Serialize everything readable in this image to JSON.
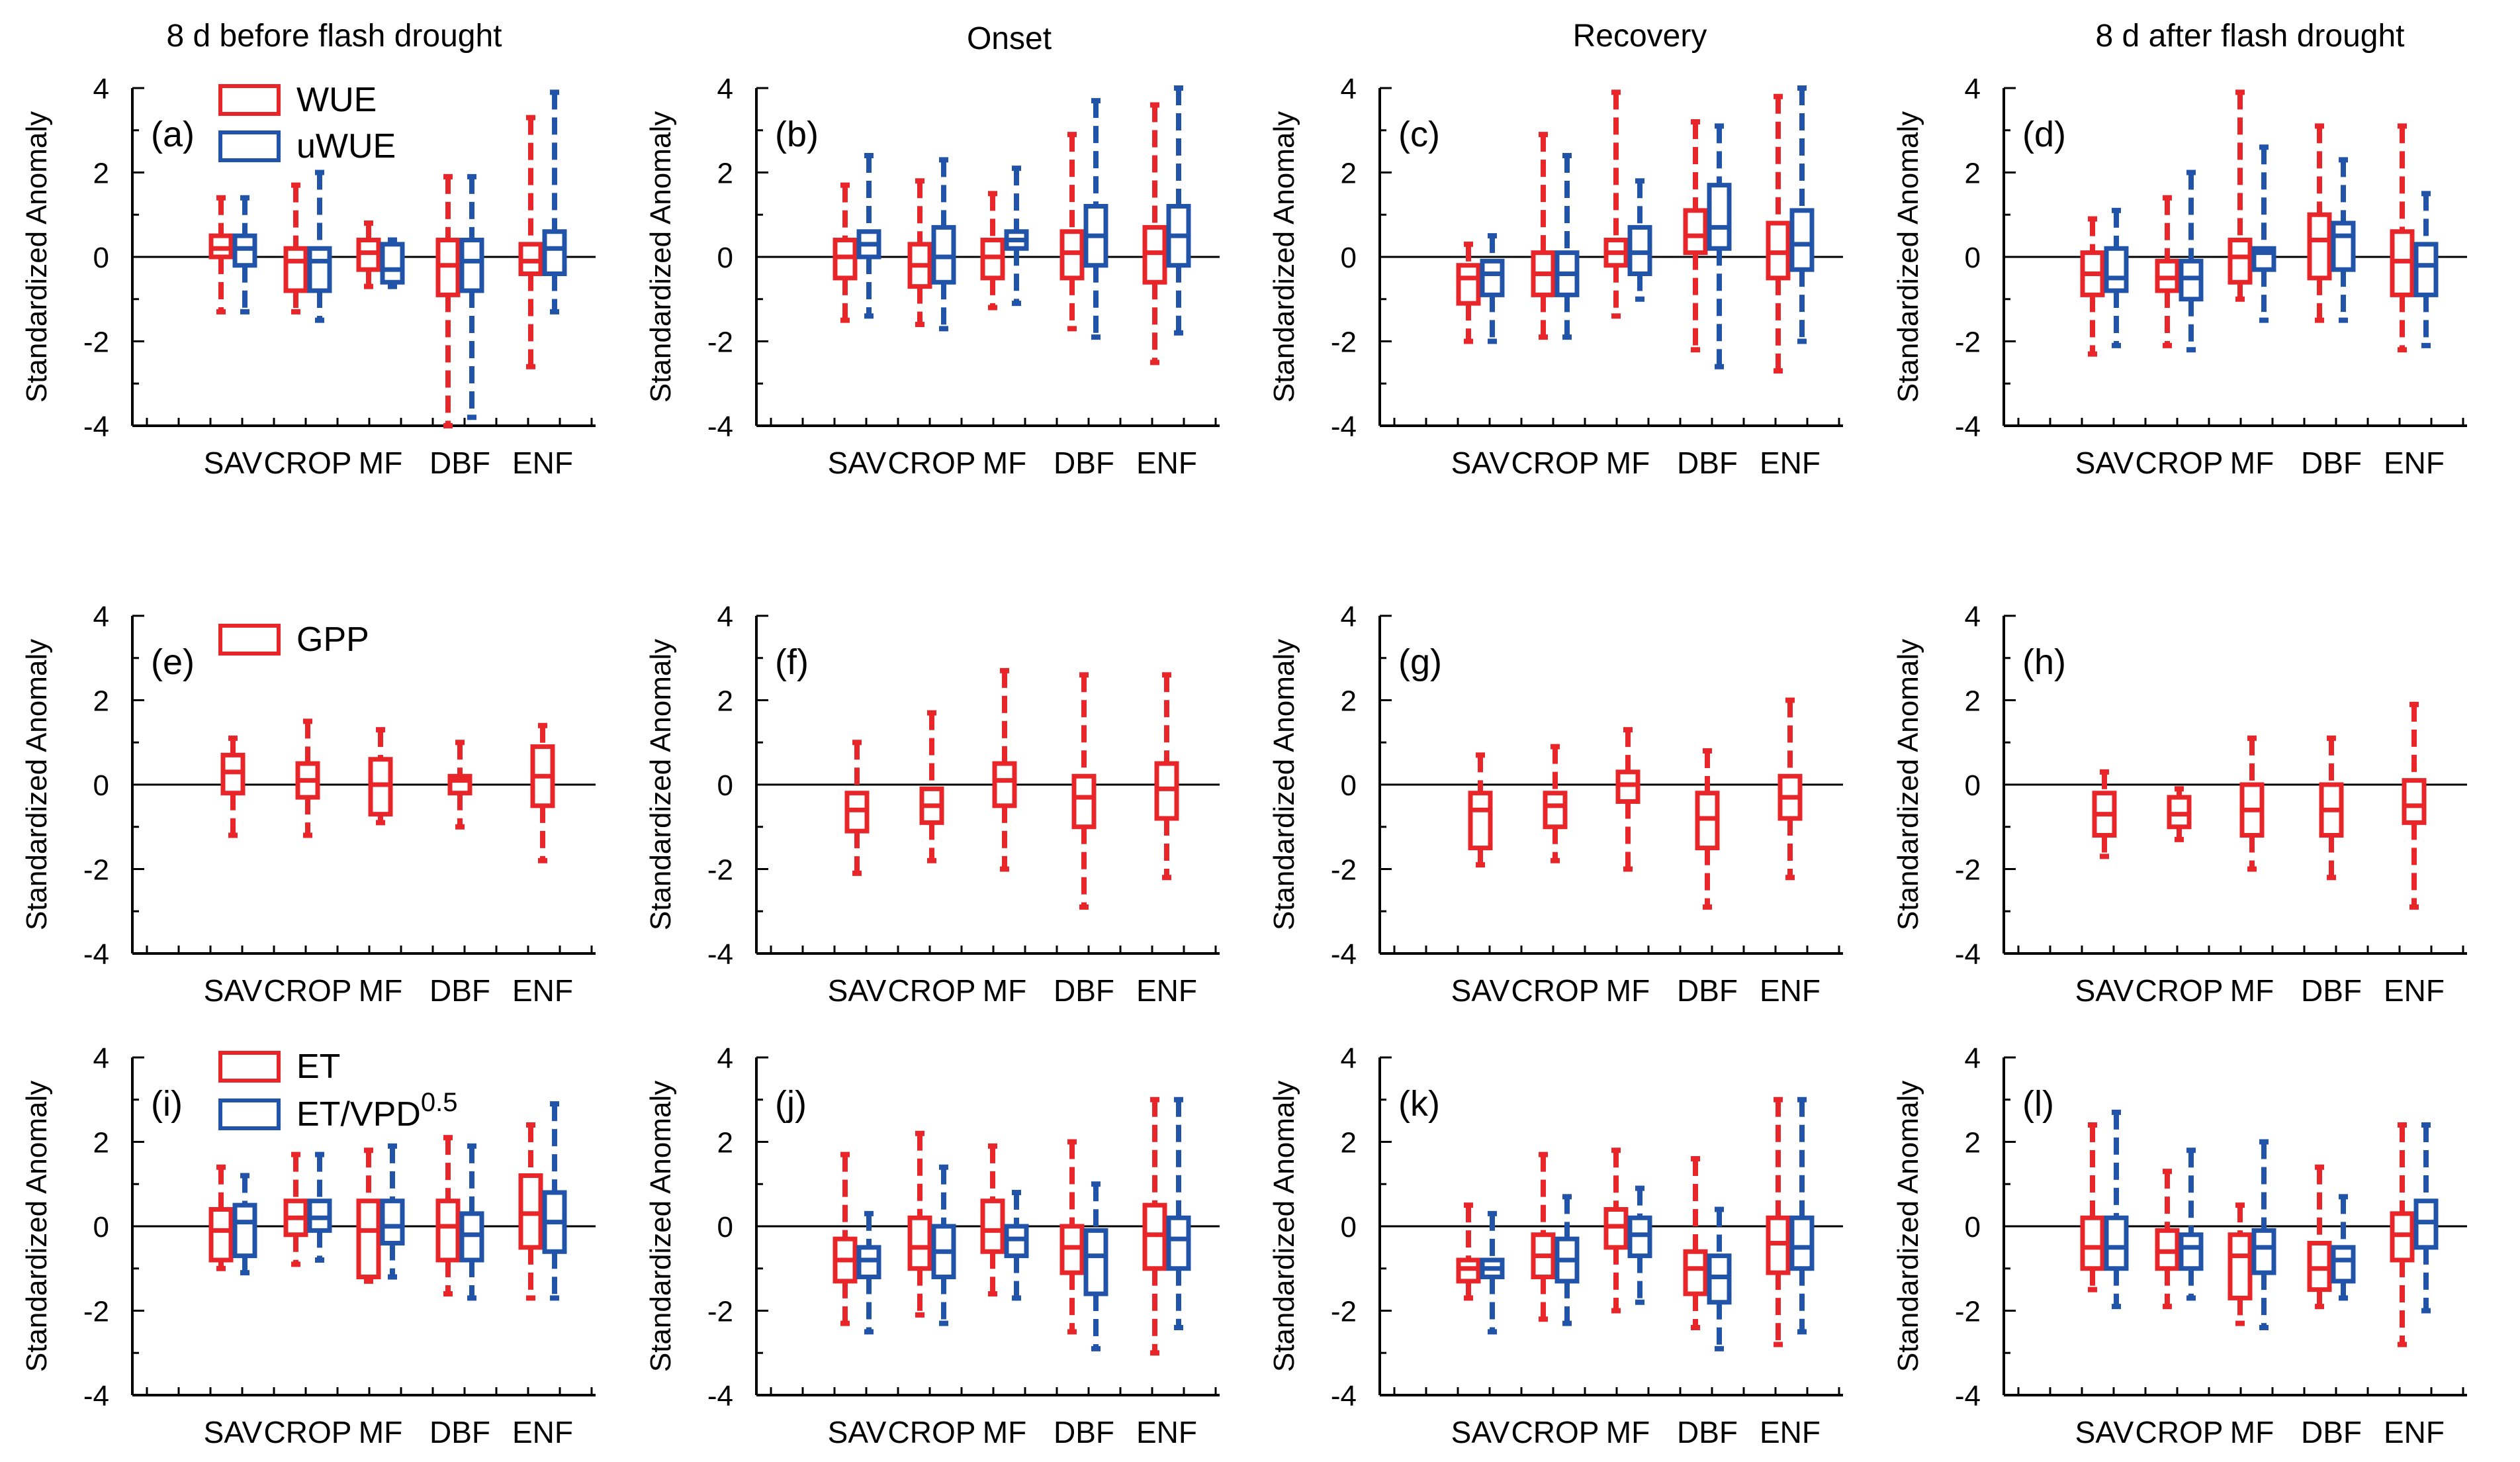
{
  "figure": {
    "column_titles": [
      "8 d before flash drought",
      "Onset",
      "Recovery",
      "8 d after flash drought"
    ]
  },
  "colors": {
    "red": "#e8262a",
    "blue": "#2154a8",
    "axis": "#000000"
  },
  "legends": [
    {
      "row": 0,
      "items": [
        {
          "label": "WUE",
          "color": "#e8262a"
        },
        {
          "label": "uWUE",
          "color": "#2154a8"
        }
      ]
    },
    {
      "row": 1,
      "items": [
        {
          "label": "GPP",
          "color": "#e8262a"
        }
      ]
    },
    {
      "row": 2,
      "items": [
        {
          "label": "ET",
          "color": "#e8262a"
        },
        {
          "label": "ET/VPD",
          "sup": "0.5",
          "color": "#2154a8"
        }
      ]
    }
  ],
  "chart_data": [
    {
      "panel": "(a)",
      "type": "boxplot",
      "row": 0,
      "col": 0,
      "ylabel": "Standardized Anomaly",
      "ylim": [
        -4,
        4
      ],
      "yticks": [
        "4",
        "2",
        "0",
        "-2",
        "-4"
      ],
      "categories": [
        "SAV",
        "CROP",
        "MF",
        "DBF",
        "ENF"
      ],
      "series": [
        {
          "name": "WUE",
          "boxes": [
            [
              -1.3,
              0.0,
              0.2,
              0.5,
              1.4
            ],
            [
              -1.3,
              -0.8,
              -0.1,
              0.2,
              1.7
            ],
            [
              -0.7,
              -0.3,
              0.1,
              0.4,
              0.8
            ],
            [
              -4.0,
              -0.9,
              -0.2,
              0.4,
              1.9
            ],
            [
              -2.6,
              -0.4,
              -0.1,
              0.3,
              3.3
            ]
          ]
        },
        {
          "name": "uWUE",
          "boxes": [
            [
              -1.3,
              -0.2,
              0.2,
              0.5,
              1.4
            ],
            [
              -1.5,
              -0.8,
              -0.1,
              0.2,
              2.0
            ],
            [
              -0.7,
              -0.6,
              -0.3,
              0.3,
              0.4
            ],
            [
              -3.8,
              -0.8,
              -0.1,
              0.4,
              1.9
            ],
            [
              -1.3,
              -0.4,
              0.2,
              0.6,
              3.9
            ]
          ]
        }
      ]
    },
    {
      "panel": "(b)",
      "type": "boxplot",
      "row": 0,
      "col": 1,
      "ylabel": "Standardized Anomaly",
      "ylim": [
        -4,
        4
      ],
      "yticks": [
        "4",
        "2",
        "0",
        "-2",
        "-4"
      ],
      "categories": [
        "SAV",
        "CROP",
        "MF",
        "DBF",
        "ENF"
      ],
      "series": [
        {
          "name": "WUE",
          "boxes": [
            [
              -1.5,
              -0.5,
              0.0,
              0.4,
              1.7
            ],
            [
              -1.6,
              -0.7,
              -0.2,
              0.3,
              1.8
            ],
            [
              -1.2,
              -0.5,
              0.0,
              0.4,
              1.5
            ],
            [
              -1.7,
              -0.5,
              0.1,
              0.6,
              2.9
            ],
            [
              -2.5,
              -0.6,
              0.1,
              0.7,
              3.6
            ]
          ]
        },
        {
          "name": "uWUE",
          "boxes": [
            [
              -1.4,
              0.0,
              0.3,
              0.6,
              2.4
            ],
            [
              -1.7,
              -0.6,
              0.0,
              0.7,
              2.3
            ],
            [
              -1.1,
              0.2,
              0.4,
              0.6,
              2.1
            ],
            [
              -1.9,
              -0.2,
              0.5,
              1.2,
              3.7
            ],
            [
              -1.8,
              -0.2,
              0.5,
              1.2,
              4.0
            ]
          ]
        }
      ]
    },
    {
      "panel": "(c)",
      "type": "boxplot",
      "row": 0,
      "col": 2,
      "ylabel": "Standardized Anomaly",
      "ylim": [
        -4,
        4
      ],
      "yticks": [
        "4",
        "2",
        "0",
        "-2",
        "-4"
      ],
      "categories": [
        "SAV",
        "CROP",
        "MF",
        "DBF",
        "ENF"
      ],
      "series": [
        {
          "name": "WUE",
          "boxes": [
            [
              -2.0,
              -1.1,
              -0.5,
              -0.2,
              0.3
            ],
            [
              -1.9,
              -0.9,
              -0.4,
              0.1,
              2.9
            ],
            [
              -1.4,
              -0.2,
              0.1,
              0.4,
              3.9
            ],
            [
              -2.2,
              0.1,
              0.5,
              1.1,
              3.2
            ],
            [
              -2.7,
              -0.5,
              0.1,
              0.8,
              3.8
            ]
          ]
        },
        {
          "name": "uWUE",
          "boxes": [
            [
              -2.0,
              -0.9,
              -0.4,
              -0.1,
              0.5
            ],
            [
              -1.9,
              -0.9,
              -0.4,
              0.1,
              2.4
            ],
            [
              -1.0,
              -0.4,
              0.1,
              0.7,
              1.8
            ],
            [
              -2.6,
              0.2,
              0.7,
              1.7,
              3.1
            ],
            [
              -2.0,
              -0.3,
              0.3,
              1.1,
              4.0
            ]
          ]
        }
      ]
    },
    {
      "panel": "(d)",
      "type": "boxplot",
      "row": 0,
      "col": 3,
      "ylabel": "Standardized Anomaly",
      "ylim": [
        -4,
        4
      ],
      "yticks": [
        "4",
        "2",
        "0",
        "-2",
        "-4"
      ],
      "categories": [
        "SAV",
        "CROP",
        "MF",
        "DBF",
        "ENF"
      ],
      "series": [
        {
          "name": "WUE",
          "boxes": [
            [
              -2.3,
              -0.9,
              -0.4,
              0.1,
              0.9
            ],
            [
              -2.1,
              -0.8,
              -0.5,
              -0.1,
              1.4
            ],
            [
              -1.0,
              -0.6,
              0.0,
              0.4,
              3.9
            ],
            [
              -1.5,
              -0.5,
              0.4,
              1.0,
              3.1
            ],
            [
              -2.2,
              -0.9,
              -0.1,
              0.6,
              3.1
            ]
          ]
        },
        {
          "name": "uWUE",
          "boxes": [
            [
              -2.1,
              -0.8,
              -0.5,
              0.2,
              1.1
            ],
            [
              -2.2,
              -1.0,
              -0.5,
              -0.1,
              2.0
            ],
            [
              -1.5,
              -0.3,
              0.1,
              0.2,
              2.6
            ],
            [
              -1.5,
              -0.3,
              0.5,
              0.8,
              2.3
            ],
            [
              -2.1,
              -0.9,
              -0.2,
              0.3,
              1.5
            ]
          ]
        }
      ]
    },
    {
      "panel": "(e)",
      "type": "boxplot",
      "row": 1,
      "col": 0,
      "ylabel": "Standardized Anomaly",
      "ylim": [
        -4,
        4
      ],
      "yticks": [
        "4",
        "2",
        "0",
        "-2",
        "-4"
      ],
      "categories": [
        "SAV",
        "CROP",
        "MF",
        "DBF",
        "ENF"
      ],
      "series": [
        {
          "name": "GPP",
          "boxes": [
            [
              -1.2,
              -0.2,
              0.3,
              0.7,
              1.1
            ],
            [
              -1.2,
              -0.3,
              0.1,
              0.5,
              1.5
            ],
            [
              -0.9,
              -0.7,
              0.0,
              0.6,
              1.3
            ],
            [
              -1.0,
              -0.2,
              0.1,
              0.2,
              1.0
            ],
            [
              -1.8,
              -0.5,
              0.2,
              0.9,
              1.4
            ]
          ]
        }
      ]
    },
    {
      "panel": "(f)",
      "type": "boxplot",
      "row": 1,
      "col": 1,
      "ylabel": "Standardized Anomaly",
      "ylim": [
        -4,
        4
      ],
      "yticks": [
        "4",
        "2",
        "0",
        "-2",
        "-4"
      ],
      "categories": [
        "SAV",
        "CROP",
        "MF",
        "DBF",
        "ENF"
      ],
      "series": [
        {
          "name": "GPP",
          "boxes": [
            [
              -2.1,
              -1.1,
              -0.6,
              -0.2,
              1.0
            ],
            [
              -1.8,
              -0.9,
              -0.5,
              -0.1,
              1.7
            ],
            [
              -2.0,
              -0.5,
              0.1,
              0.5,
              2.7
            ],
            [
              -2.9,
              -1.0,
              -0.3,
              0.2,
              2.6
            ],
            [
              -2.2,
              -0.8,
              -0.1,
              0.5,
              2.6
            ]
          ]
        }
      ]
    },
    {
      "panel": "(g)",
      "type": "boxplot",
      "row": 1,
      "col": 2,
      "ylabel": "Standardized Anomaly",
      "ylim": [
        -4,
        4
      ],
      "yticks": [
        "4",
        "2",
        "0",
        "-2",
        "-4"
      ],
      "categories": [
        "SAV",
        "CROP",
        "MF",
        "DBF",
        "ENF"
      ],
      "series": [
        {
          "name": "GPP",
          "boxes": [
            [
              -1.9,
              -1.5,
              -0.6,
              -0.2,
              0.7
            ],
            [
              -1.8,
              -1.0,
              -0.5,
              -0.2,
              0.9
            ],
            [
              -2.0,
              -0.4,
              0.0,
              0.3,
              1.3
            ],
            [
              -2.9,
              -1.5,
              -0.8,
              -0.2,
              0.8
            ],
            [
              -2.2,
              -0.8,
              -0.3,
              0.2,
              2.0
            ]
          ]
        }
      ]
    },
    {
      "panel": "(h)",
      "type": "boxplot",
      "row": 1,
      "col": 3,
      "ylabel": "Standardized Anomaly",
      "ylim": [
        -4,
        4
      ],
      "yticks": [
        "4",
        "2",
        "0",
        "-2",
        "-4"
      ],
      "categories": [
        "SAV",
        "CROP",
        "MF",
        "DBF",
        "ENF"
      ],
      "series": [
        {
          "name": "GPP",
          "boxes": [
            [
              -1.7,
              -1.2,
              -0.7,
              -0.2,
              0.3
            ],
            [
              -1.3,
              -1.0,
              -0.7,
              -0.3,
              -0.1
            ],
            [
              -2.0,
              -1.2,
              -0.6,
              0.0,
              1.1
            ],
            [
              -2.2,
              -1.2,
              -0.6,
              0.0,
              1.1
            ],
            [
              -2.9,
              -0.9,
              -0.5,
              0.1,
              1.9
            ]
          ]
        }
      ]
    },
    {
      "panel": "(i)",
      "type": "boxplot",
      "row": 2,
      "col": 0,
      "ylabel": "Standardized Anomaly",
      "ylim": [
        -4,
        4
      ],
      "yticks": [
        "4",
        "2",
        "0",
        "-2",
        "-4"
      ],
      "categories": [
        "SAV",
        "CROP",
        "MF",
        "DBF",
        "ENF"
      ],
      "series": [
        {
          "name": "ET",
          "boxes": [
            [
              -1.0,
              -0.8,
              -0.1,
              0.4,
              1.4
            ],
            [
              -0.9,
              -0.2,
              0.2,
              0.6,
              1.7
            ],
            [
              -1.3,
              -1.2,
              -0.1,
              0.6,
              1.8
            ],
            [
              -1.6,
              -0.8,
              0.0,
              0.6,
              2.1
            ],
            [
              -1.7,
              -0.5,
              0.3,
              1.2,
              2.4
            ]
          ]
        },
        {
          "name": "ET/VPD^0.5",
          "boxes": [
            [
              -1.1,
              -0.7,
              0.1,
              0.5,
              1.2
            ],
            [
              -0.8,
              -0.1,
              0.2,
              0.6,
              1.7
            ],
            [
              -1.2,
              -0.4,
              0.0,
              0.6,
              1.9
            ],
            [
              -1.7,
              -0.8,
              -0.2,
              0.3,
              1.9
            ],
            [
              -1.7,
              -0.6,
              0.1,
              0.8,
              2.9
            ]
          ]
        }
      ]
    },
    {
      "panel": "(j)",
      "type": "boxplot",
      "row": 2,
      "col": 1,
      "ylabel": "Standardized Anomaly",
      "ylim": [
        -4,
        4
      ],
      "yticks": [
        "4",
        "2",
        "0",
        "-2",
        "-4"
      ],
      "categories": [
        "SAV",
        "CROP",
        "MF",
        "DBF",
        "ENF"
      ],
      "series": [
        {
          "name": "ET",
          "boxes": [
            [
              -2.3,
              -1.3,
              -0.8,
              -0.3,
              1.7
            ],
            [
              -2.1,
              -1.0,
              -0.5,
              0.2,
              2.2
            ],
            [
              -1.6,
              -0.6,
              -0.1,
              0.6,
              1.9
            ],
            [
              -2.5,
              -1.1,
              -0.5,
              0.0,
              2.0
            ],
            [
              -3.0,
              -1.0,
              -0.2,
              0.5,
              3.0
            ]
          ]
        },
        {
          "name": "ET/VPD^0.5",
          "boxes": [
            [
              -2.5,
              -1.2,
              -0.8,
              -0.5,
              0.3
            ],
            [
              -2.3,
              -1.2,
              -0.6,
              0.0,
              1.4
            ],
            [
              -1.7,
              -0.7,
              -0.3,
              0.0,
              0.8
            ],
            [
              -2.9,
              -1.6,
              -0.7,
              -0.1,
              1.0
            ],
            [
              -2.4,
              -1.0,
              -0.3,
              0.2,
              3.0
            ]
          ]
        }
      ]
    },
    {
      "panel": "(k)",
      "type": "boxplot",
      "row": 2,
      "col": 2,
      "ylabel": "Standardized Anomaly",
      "ylim": [
        -4,
        4
      ],
      "yticks": [
        "4",
        "2",
        "0",
        "-2",
        "-4"
      ],
      "categories": [
        "SAV",
        "CROP",
        "MF",
        "DBF",
        "ENF"
      ],
      "series": [
        {
          "name": "ET",
          "boxes": [
            [
              -1.7,
              -1.3,
              -1.0,
              -0.8,
              0.5
            ],
            [
              -2.2,
              -1.2,
              -0.7,
              -0.2,
              1.7
            ],
            [
              -2.0,
              -0.5,
              0.0,
              0.4,
              1.8
            ],
            [
              -2.4,
              -1.6,
              -1.0,
              -0.6,
              1.6
            ],
            [
              -2.8,
              -1.1,
              -0.4,
              0.2,
              3.0
            ]
          ]
        },
        {
          "name": "ET/VPD^0.5",
          "boxes": [
            [
              -2.5,
              -1.2,
              -1.0,
              -0.8,
              0.3
            ],
            [
              -2.3,
              -1.3,
              -0.8,
              -0.3,
              0.7
            ],
            [
              -1.8,
              -0.7,
              -0.2,
              0.2,
              0.9
            ],
            [
              -2.9,
              -1.8,
              -1.2,
              -0.7,
              0.4
            ],
            [
              -2.5,
              -1.0,
              -0.5,
              0.2,
              3.0
            ]
          ]
        }
      ]
    },
    {
      "panel": "(l)",
      "type": "boxplot",
      "row": 2,
      "col": 3,
      "ylabel": "Standardized Anomaly",
      "ylim": [
        -4,
        4
      ],
      "yticks": [
        "4",
        "2",
        "0",
        "-2",
        "-4"
      ],
      "categories": [
        "SAV",
        "CROP",
        "MF",
        "DBF",
        "ENF"
      ],
      "series": [
        {
          "name": "ET",
          "boxes": [
            [
              -1.5,
              -1.0,
              -0.5,
              0.2,
              2.4
            ],
            [
              -1.9,
              -1.0,
              -0.6,
              -0.1,
              1.3
            ],
            [
              -2.3,
              -1.7,
              -0.7,
              -0.2,
              0.5
            ],
            [
              -1.9,
              -1.5,
              -1.0,
              -0.4,
              1.4
            ],
            [
              -2.8,
              -0.8,
              -0.2,
              0.3,
              2.4
            ]
          ]
        },
        {
          "name": "ET/VPD^0.5",
          "boxes": [
            [
              -1.9,
              -1.0,
              -0.5,
              0.2,
              2.7
            ],
            [
              -1.7,
              -1.0,
              -0.5,
              -0.2,
              1.8
            ],
            [
              -2.4,
              -1.1,
              -0.5,
              -0.1,
              2.0
            ],
            [
              -1.7,
              -1.3,
              -0.8,
              -0.5,
              0.7
            ],
            [
              -2.0,
              -0.5,
              0.1,
              0.6,
              2.4
            ]
          ]
        }
      ]
    }
  ]
}
